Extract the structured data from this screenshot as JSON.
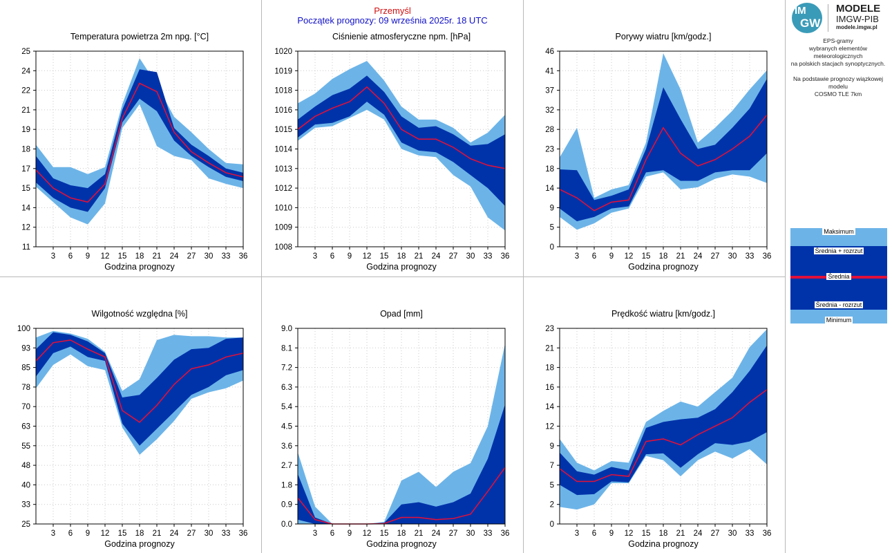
{
  "header": {
    "city": "Przemyśl",
    "forecast_start": "Początek prognozy: 09 września 2025r. 18 UTC"
  },
  "logo": {
    "mark_line1": "IM",
    "mark_line2": "GW",
    "title": "MODELE",
    "subtitle": "IMGW-PIB",
    "url": "modele.imgw.pl"
  },
  "description": {
    "line1": "EPS-gramy",
    "line2": "wybranych elementów meteorologicznych",
    "line3": "na polskich stacjach  synoptycznych.",
    "line4": "Na podstawie prognozy wiązkowej modelu",
    "line5": "COSMO TLE 7km"
  },
  "legend": {
    "max": "Maksimum",
    "mean_plus": "Średnia + rozrzut",
    "mean": "Średnia",
    "mean_minus": "Średnia - rozrzut",
    "min": "Minimum"
  },
  "colors": {
    "minmax_band": "#6cb4e8",
    "spread_band": "#0033aa",
    "mean_line": "#e0103a",
    "header_city": "#d01010",
    "header_start": "#1010c8"
  },
  "chart_data": [
    {
      "id": "temp",
      "type": "area",
      "title": "Temperatura powietrza 2m npg. [°C]",
      "xlabel": "Godzina prognozy",
      "x": [
        0,
        3,
        6,
        9,
        12,
        15,
        18,
        21,
        24,
        27,
        30,
        33,
        36
      ],
      "xticks": [
        "3",
        "6",
        "9",
        "12",
        "15",
        "18",
        "21",
        "24",
        "27",
        "30",
        "33",
        "36"
      ],
      "ylim": [
        11,
        25
      ],
      "yticks": [
        "11",
        "12",
        "14",
        "15",
        "17",
        "18",
        "19",
        "21",
        "22",
        "24",
        "25"
      ],
      "max": [
        18.3,
        16.7,
        16.7,
        16.2,
        16.7,
        21.2,
        24.5,
        22.6,
        20.3,
        19.2,
        18.0,
        17.0,
        16.9
      ],
      "mean_plus": [
        17.5,
        15.9,
        15.4,
        15.2,
        16.2,
        20.8,
        23.7,
        23.5,
        19.5,
        18.3,
        17.5,
        16.6,
        16.3
      ],
      "mean": [
        16.5,
        15.2,
        14.5,
        14.2,
        15.5,
        20.2,
        22.7,
        22.1,
        19.2,
        17.8,
        17.0,
        16.3,
        16.0
      ],
      "mean_minus": [
        15.6,
        14.5,
        13.8,
        13.5,
        15.2,
        19.9,
        21.6,
        20.7,
        18.6,
        17.5,
        16.7,
        16.0,
        15.7
      ],
      "min": [
        15.3,
        14.2,
        13.1,
        12.6,
        14.1,
        19.5,
        21.2,
        18.2,
        17.5,
        17.2,
        15.9,
        15.5,
        15.2
      ]
    },
    {
      "id": "pres",
      "type": "area",
      "title": "Ciśnienie atmosferyczne npm. [hPa]",
      "xlabel": "Godzina prognozy",
      "x": [
        0,
        3,
        6,
        9,
        12,
        15,
        18,
        21,
        24,
        27,
        30,
        33,
        36
      ],
      "xticks": [
        "3",
        "6",
        "9",
        "12",
        "15",
        "18",
        "21",
        "24",
        "27",
        "30",
        "33",
        "36"
      ],
      "ylim": [
        1008,
        1020
      ],
      "yticks": [
        "1008",
        "1009",
        "1010",
        "1012",
        "1013",
        "1014",
        "1015",
        "1016",
        "1018",
        "1019",
        "1020"
      ],
      "max": [
        1016.8,
        1017.4,
        1018.3,
        1018.9,
        1019.4,
        1018.2,
        1016.6,
        1015.8,
        1015.8,
        1015.3,
        1014.4,
        1015.0,
        1016.1
      ],
      "mean_plus": [
        1015.8,
        1016.6,
        1017.3,
        1017.7,
        1018.5,
        1017.5,
        1016.0,
        1015.3,
        1015.4,
        1014.9,
        1014.2,
        1014.3,
        1014.9
      ],
      "mean": [
        1015.2,
        1016.0,
        1016.5,
        1016.9,
        1017.8,
        1016.8,
        1015.2,
        1014.6,
        1014.6,
        1014.1,
        1013.4,
        1013.0,
        1012.8
      ],
      "mean_minus": [
        1014.7,
        1015.5,
        1015.6,
        1016.0,
        1016.9,
        1016.1,
        1014.4,
        1013.9,
        1013.8,
        1013.2,
        1012.4,
        1011.6,
        1010.5
      ],
      "min": [
        1014.5,
        1015.3,
        1015.4,
        1015.9,
        1016.4,
        1015.8,
        1014.0,
        1013.6,
        1013.5,
        1012.4,
        1011.7,
        1009.8,
        1009.0
      ]
    },
    {
      "id": "gust",
      "type": "area",
      "title": "Porywy wiatru [km/godz.]",
      "xlabel": "Godzina prognozy",
      "x": [
        0,
        3,
        6,
        9,
        12,
        15,
        18,
        21,
        24,
        27,
        30,
        33,
        36
      ],
      "xticks": [
        "3",
        "6",
        "9",
        "12",
        "15",
        "18",
        "21",
        "24",
        "27",
        "30",
        "33",
        "36"
      ],
      "ylim": [
        0,
        46
      ],
      "yticks": [
        "0",
        "5",
        "9",
        "14",
        "18",
        "23",
        "28",
        "32",
        "37",
        "41",
        "46"
      ],
      "max": [
        21.0,
        28.0,
        11.5,
        13.5,
        14.5,
        24.5,
        45.5,
        37.0,
        24.5,
        28.0,
        32.0,
        37.0,
        41.5
      ],
      "mean_plus": [
        18.2,
        18.0,
        11.0,
        12.0,
        13.5,
        23.0,
        37.5,
        30.0,
        23.0,
        24.0,
        28.0,
        32.5,
        39.5
      ],
      "mean": [
        13.5,
        11.5,
        8.5,
        10.5,
        11.0,
        20.5,
        28.0,
        22.0,
        19.0,
        20.5,
        23.0,
        26.0,
        31.0
      ],
      "mean_minus": [
        9.0,
        6.0,
        7.0,
        9.0,
        9.5,
        17.5,
        18.0,
        15.5,
        15.5,
        17.5,
        18.0,
        18.0,
        22.0
      ],
      "min": [
        7.0,
        4.0,
        5.5,
        8.0,
        9.0,
        16.5,
        17.5,
        13.5,
        14.0,
        16.0,
        17.0,
        16.5,
        15.0
      ]
    },
    {
      "id": "hum",
      "type": "area",
      "title": "Wilgotność względna [%]",
      "xlabel": "Godzina prognozy",
      "x": [
        0,
        3,
        6,
        9,
        12,
        15,
        18,
        21,
        24,
        27,
        30,
        33,
        36
      ],
      "xticks": [
        "3",
        "6",
        "9",
        "12",
        "15",
        "18",
        "21",
        "24",
        "27",
        "30",
        "33",
        "36"
      ],
      "ylim": [
        25,
        100
      ],
      "yticks": [
        "25",
        "33",
        "40",
        "48",
        "55",
        "63",
        "70",
        "78",
        "85",
        "93",
        "100"
      ],
      "max": [
        96.5,
        99.0,
        98.0,
        96.0,
        91.0,
        76.0,
        80.5,
        95.5,
        97.5,
        97.0,
        97.0,
        96.5,
        96.5
      ],
      "mean_plus": [
        92.0,
        98.5,
        97.5,
        95.0,
        90.5,
        73.5,
        74.5,
        81.0,
        88.0,
        92.0,
        92.5,
        96.0,
        96.5
      ],
      "mean": [
        87.5,
        94.5,
        95.5,
        92.0,
        89.0,
        68.5,
        64.0,
        70.5,
        78.5,
        84.5,
        86.0,
        89.0,
        90.5
      ],
      "mean_minus": [
        81.5,
        90.5,
        93.0,
        89.0,
        87.5,
        63.5,
        55.0,
        61.5,
        68.0,
        74.5,
        77.5,
        82.0,
        84.0
      ],
      "min": [
        77.0,
        86.0,
        90.0,
        85.5,
        84.0,
        62.0,
        51.5,
        57.5,
        64.5,
        73.0,
        75.5,
        77.0,
        80.0
      ]
    },
    {
      "id": "precip",
      "type": "area",
      "title": "Opad [mm]",
      "xlabel": "Godzina prognozy",
      "x": [
        0,
        3,
        6,
        9,
        12,
        15,
        18,
        21,
        24,
        27,
        30,
        33,
        36
      ],
      "xticks": [
        "3",
        "6",
        "9",
        "12",
        "15",
        "18",
        "21",
        "24",
        "27",
        "30",
        "33",
        "36"
      ],
      "ylim": [
        0,
        9
      ],
      "yticks": [
        "0.0",
        "0.9",
        "1.8",
        "2.7",
        "3.6",
        "4.5",
        "5.4",
        "6.3",
        "7.2",
        "8.1",
        "9.0"
      ],
      "max": [
        3.3,
        0.8,
        0.0,
        0.0,
        0.0,
        0.1,
        2.0,
        2.4,
        1.7,
        2.4,
        2.8,
        4.5,
        8.3
      ],
      "mean_plus": [
        2.3,
        0.3,
        0.0,
        0.0,
        0.0,
        0.05,
        0.9,
        1.0,
        0.8,
        1.0,
        1.4,
        3.0,
        5.5
      ],
      "mean": [
        1.2,
        0.2,
        0.0,
        0.0,
        0.0,
        0.02,
        0.3,
        0.3,
        0.2,
        0.25,
        0.45,
        1.5,
        2.6
      ],
      "mean_minus": [
        0.2,
        0.0,
        0.0,
        0.0,
        0.0,
        0.0,
        0.0,
        0.0,
        0.0,
        0.0,
        0.0,
        0.0,
        0.0
      ],
      "min": [
        0.0,
        0.0,
        0.0,
        0.0,
        0.0,
        0.0,
        0.0,
        0.0,
        0.0,
        0.0,
        0.0,
        0.0,
        0.0
      ]
    },
    {
      "id": "wind",
      "type": "area",
      "title": "Prędkość wiatru [km/godz.]",
      "xlabel": "Godzina prognozy",
      "x": [
        0,
        3,
        6,
        9,
        12,
        15,
        18,
        21,
        24,
        27,
        30,
        33,
        36
      ],
      "xticks": [
        "3",
        "6",
        "9",
        "12",
        "15",
        "18",
        "21",
        "24",
        "27",
        "30",
        "33",
        "36"
      ],
      "ylim": [
        0,
        23
      ],
      "yticks": [
        "0",
        "2",
        "5",
        "7",
        "9",
        "12",
        "14",
        "16",
        "18",
        "21",
        "23"
      ],
      "max": [
        10.0,
        7.2,
        6.3,
        7.4,
        7.2,
        12.0,
        13.3,
        14.4,
        13.8,
        15.5,
        17.2,
        20.8,
        22.9
      ],
      "mean_plus": [
        8.4,
        6.2,
        5.8,
        6.7,
        6.3,
        11.3,
        12.0,
        12.3,
        12.5,
        13.5,
        15.5,
        18.0,
        21.0
      ],
      "mean": [
        6.5,
        5.0,
        5.0,
        5.8,
        5.6,
        9.7,
        10.0,
        9.3,
        10.5,
        11.5,
        12.5,
        14.3,
        15.8
      ],
      "mean_minus": [
        4.6,
        3.4,
        3.5,
        5.0,
        4.9,
        8.2,
        8.3,
        6.6,
        8.2,
        9.5,
        9.3,
        9.7,
        10.8
      ],
      "min": [
        2.0,
        1.7,
        2.3,
        4.8,
        4.8,
        8.0,
        7.5,
        5.6,
        7.5,
        8.5,
        7.7,
        8.8,
        7.0
      ]
    }
  ]
}
